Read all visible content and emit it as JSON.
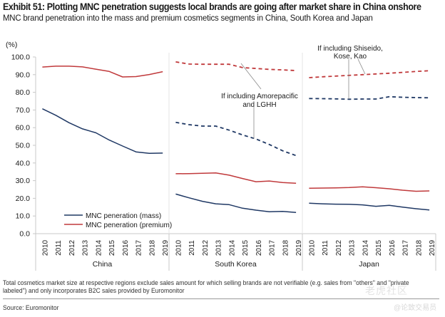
{
  "header": {
    "title": "Exhibit 51: Plotting MNC penetration suggests local brands are going after market share in China onshore",
    "subtitle": "MNC brand penetration into the mass and premium cosmetics segments in China, South Korea and Japan"
  },
  "footer": {
    "note_line1": "Total cosmetics market size at respective regions exclude sales amount for which selling brands are not verifiable (e.g. sales from \"others\" and \"private",
    "note_line2": "labeled\") and only incorporates B2C sales provided by Euromonitor",
    "source": "Source: Euromonitor",
    "watermark": "老虎社区",
    "watermark_handle": "@论致交易员"
  },
  "chart_data": {
    "type": "line",
    "title": "",
    "ylabel": "(%)",
    "xlabel": "",
    "ylim": [
      0,
      100
    ],
    "yticks": [
      "0.0",
      "10.0",
      "20.0",
      "30.0",
      "40.0",
      "50.0",
      "60.0",
      "70.0",
      "80.0",
      "90.0",
      "100.0"
    ],
    "grid": false,
    "legend_position": "bottom-left",
    "colors": {
      "mass": "#1f3864",
      "premium": "#c0393b",
      "annotation_line": "#8a8a8a",
      "axis": "#c8c8c8"
    },
    "groups": [
      {
        "name": "China",
        "years": [
          "2010",
          "2011",
          "2012",
          "2013",
          "2014",
          "2015",
          "2016",
          "2017",
          "2018",
          "2019"
        ],
        "series": [
          {
            "name": "MNC peneration (mass)",
            "key": "mass",
            "style": "solid",
            "values": [
              70.7,
              67.0,
              62.8,
              59.3,
              57.1,
              53.0,
              49.6,
              46.3,
              45.5,
              45.6
            ]
          },
          {
            "name": "MNC peneration (premium)",
            "key": "premium",
            "style": "solid",
            "values": [
              94.3,
              94.8,
              94.8,
              94.4,
              93.1,
              91.8,
              88.7,
              88.9,
              90.1,
              91.7
            ]
          }
        ]
      },
      {
        "name": "South Korea",
        "years": [
          "2010",
          "2011",
          "2012",
          "2013",
          "2014",
          "2015",
          "2016",
          "2017",
          "2018",
          "2019"
        ],
        "series": [
          {
            "name": "MNC peneration (mass)",
            "key": "mass",
            "style": "solid",
            "values": [
              22.4,
              20.3,
              18.3,
              16.9,
              16.4,
              14.4,
              13.3,
              12.4,
              12.6,
              12.0
            ]
          },
          {
            "name": "MNC peneration (premium)",
            "key": "premium",
            "style": "solid",
            "values": [
              33.9,
              34.0,
              34.2,
              34.4,
              33.1,
              31.2,
              29.4,
              29.8,
              28.9,
              28.5
            ]
          },
          {
            "name": "Mass incl. Amorepacific and LGHH",
            "key": "mass",
            "style": "dashed",
            "values": [
              63.0,
              61.7,
              60.9,
              60.9,
              58.6,
              55.9,
              53.6,
              50.5,
              46.9,
              44.2
            ]
          },
          {
            "name": "Premium incl. Amorepacific and LGHH",
            "key": "premium",
            "style": "dashed",
            "values": [
              97.2,
              96.0,
              95.9,
              95.9,
              95.9,
              94.0,
              93.5,
              93.0,
              92.7,
              92.3
            ]
          }
        ]
      },
      {
        "name": "Japan",
        "years": [
          "2010",
          "2011",
          "2012",
          "2013",
          "2014",
          "2015",
          "2016",
          "2017",
          "2018",
          "2019"
        ],
        "series": [
          {
            "name": "MNC peneration (mass)",
            "key": "mass",
            "style": "solid",
            "values": [
              17.2,
              16.9,
              16.7,
              16.6,
              16.3,
              15.5,
              16.0,
              15.0,
              14.1,
              13.4
            ]
          },
          {
            "name": "MNC peneration (premium)",
            "key": "premium",
            "style": "solid",
            "values": [
              25.7,
              25.8,
              25.9,
              26.1,
              26.5,
              26.0,
              25.4,
              24.6,
              24.0,
              24.2
            ]
          },
          {
            "name": "Mass incl. Shiseido, Kose, Kao",
            "key": "mass",
            "style": "dashed",
            "values": [
              76.5,
              76.4,
              76.3,
              76.1,
              76.2,
              76.2,
              77.5,
              77.2,
              77.0,
              76.9
            ]
          },
          {
            "name": "Premium incl. Shiseido, Kose, Kao",
            "key": "premium",
            "style": "dashed",
            "values": [
              88.3,
              88.8,
              89.2,
              89.6,
              90.0,
              90.4,
              90.8,
              91.3,
              91.8,
              92.2
            ]
          }
        ]
      }
    ],
    "legend": [
      {
        "label": "MNC peneration (mass)",
        "key": "mass"
      },
      {
        "label": "MNC peneration (premium)",
        "key": "premium"
      }
    ],
    "annotations": [
      {
        "text_line1": "If including Amorepacific",
        "text_line2": "and LGHH",
        "group": "South Korea"
      },
      {
        "text_line1": "If including Shiseido,",
        "text_line2": "Kose, Kao",
        "group": "Japan"
      }
    ]
  }
}
